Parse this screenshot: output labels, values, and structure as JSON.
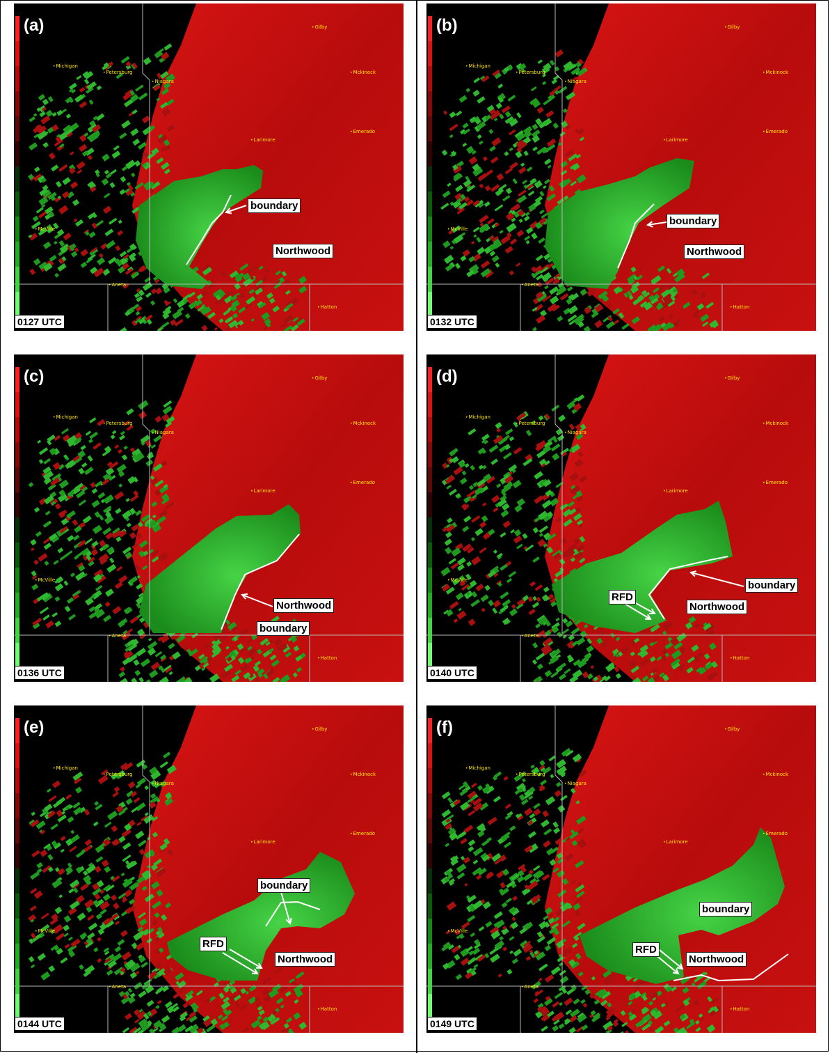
{
  "figure": {
    "panels": [
      {
        "id": "a",
        "letter": "(a)",
        "time": "0127 UTC",
        "labels": [
          {
            "text": "boundary"
          },
          {
            "text": "Northwood"
          }
        ]
      },
      {
        "id": "b",
        "letter": "(b)",
        "time": "0132 UTC",
        "labels": [
          {
            "text": "boundary"
          },
          {
            "text": "Northwood"
          }
        ]
      },
      {
        "id": "c",
        "letter": "(c)",
        "time": "0136 UTC",
        "labels": [
          {
            "text": "Northwood"
          },
          {
            "text": "boundary"
          }
        ]
      },
      {
        "id": "d",
        "letter": "(d)",
        "time": "0140 UTC",
        "labels": [
          {
            "text": "boundary"
          },
          {
            "text": "RFD"
          },
          {
            "text": "Northwood"
          }
        ]
      },
      {
        "id": "e",
        "letter": "(e)",
        "time": "0144 UTC",
        "labels": [
          {
            "text": "boundary"
          },
          {
            "text": "RFD"
          },
          {
            "text": "Northwood"
          }
        ]
      },
      {
        "id": "f",
        "letter": "(f)",
        "time": "0149 UTC",
        "labels": [
          {
            "text": "boundary"
          },
          {
            "text": "RFD"
          },
          {
            "text": "Northwood"
          }
        ]
      }
    ],
    "map_towns": [
      "Gilby",
      "Michigan",
      "Petersburg",
      "Niagara",
      "Mckinock",
      "Larimore",
      "Emerado",
      "McVille",
      "Aneta",
      "Hatton"
    ],
    "colors": {
      "inbound": "#1aa01a",
      "outbound": "#c81010",
      "background": "#000000",
      "town": "#ffe600"
    }
  }
}
